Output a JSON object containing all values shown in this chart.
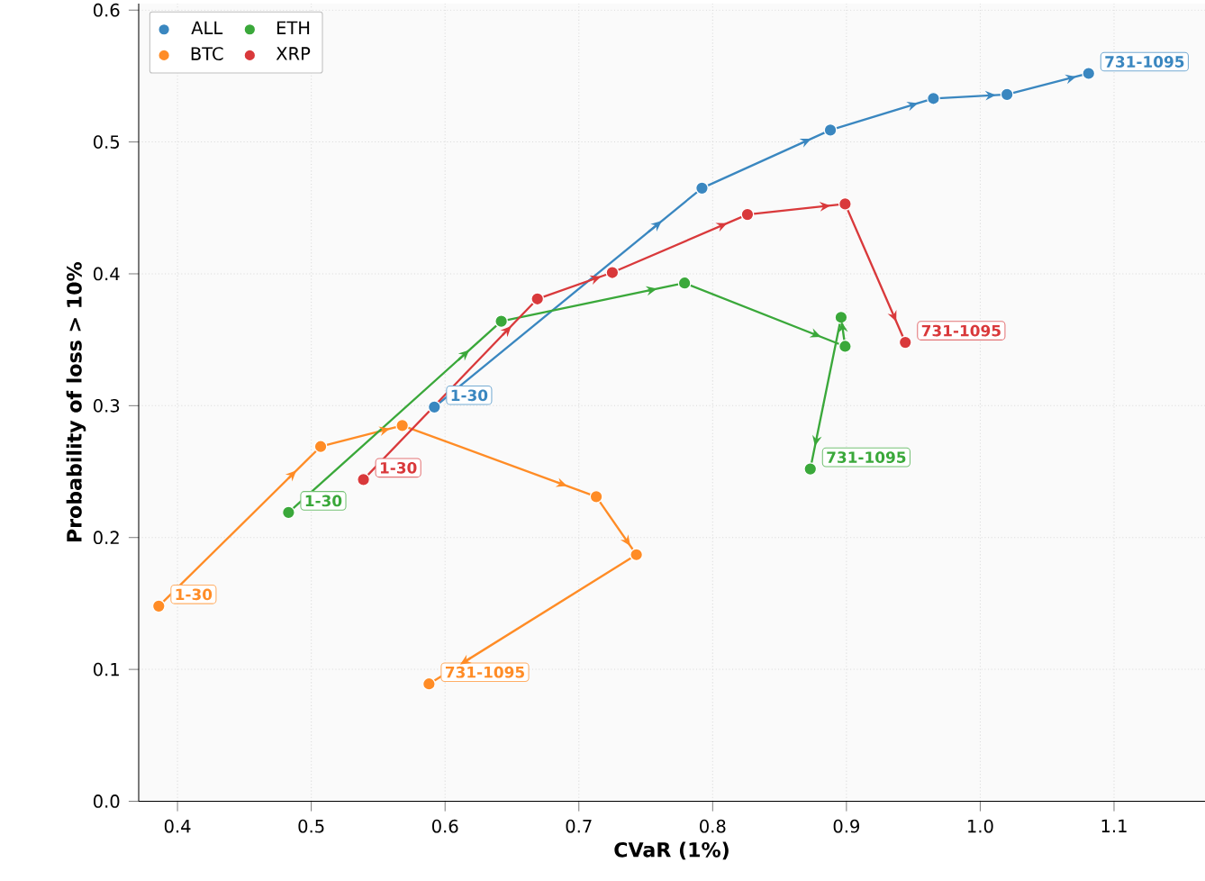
{
  "chart_data": {
    "type": "line",
    "xlabel": "CVaR (1%)",
    "ylabel": "Probability of loss > 10%",
    "series": [
      {
        "name": "ALL",
        "color": "#3a87c0",
        "x": [
          0.592,
          0.792,
          0.888,
          0.965,
          1.02,
          1.081
        ],
        "values": [
          0.299,
          0.465,
          0.509,
          0.533,
          0.536,
          0.552
        ]
      },
      {
        "name": "BTC",
        "color": "#ff8c26",
        "x": [
          0.386,
          0.507,
          0.568,
          0.713,
          0.743,
          0.588
        ],
        "values": [
          0.148,
          0.269,
          0.285,
          0.231,
          0.187,
          0.089
        ]
      },
      {
        "name": "ETH",
        "color": "#3aa83a",
        "x": [
          0.483,
          0.642,
          0.779,
          0.899,
          0.896,
          0.873
        ],
        "values": [
          0.219,
          0.364,
          0.393,
          0.345,
          0.367,
          0.252
        ]
      },
      {
        "name": "XRP",
        "color": "#d9393b",
        "x": [
          0.539,
          0.669,
          0.725,
          0.826,
          0.899,
          0.944
        ],
        "values": [
          0.244,
          0.381,
          0.401,
          0.445,
          0.453,
          0.348
        ]
      }
    ],
    "annotations": [
      {
        "text": "1-30",
        "x": 0.592,
        "y": 0.299
      },
      {
        "text": "731-1095",
        "x": 1.081,
        "y": 0.552
      },
      {
        "text": "1-30",
        "x": 0.386,
        "y": 0.148
      },
      {
        "text": "731-1095",
        "x": 0.588,
        "y": 0.089
      },
      {
        "text": "1-30",
        "x": 0.483,
        "y": 0.219
      },
      {
        "text": "731-1095",
        "x": 0.873,
        "y": 0.252
      },
      {
        "text": "1-30",
        "x": 0.539,
        "y": 0.244
      },
      {
        "text": "731-1095",
        "x": 0.944,
        "y": 0.348
      }
    ],
    "xlim": [
      0.371,
      1.168
    ],
    "ylim": [
      0,
      0.605
    ],
    "xticks": [
      0.4,
      0.5,
      0.6,
      0.7,
      0.8,
      0.9,
      {
        "value": 1.0,
        "label": "1.0"
      },
      1.1
    ],
    "yticks": [
      {
        "value": 0,
        "label": "0.0"
      },
      0.1,
      0.2,
      0.3,
      0.4,
      0.5,
      0.6
    ],
    "grid": true,
    "legend": "top left",
    "marker": "circle",
    "line_style": "solid"
  }
}
